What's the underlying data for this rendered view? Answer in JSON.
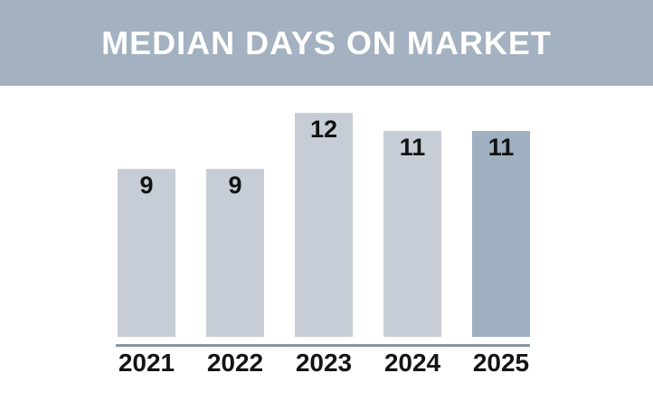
{
  "title": "MEDIAN DAYS ON MARKET",
  "chart_data": {
    "type": "bar",
    "title": "MEDIAN DAYS ON MARKET",
    "categories": [
      "2021",
      "2022",
      "2023",
      "2024",
      "2025"
    ],
    "values": [
      9,
      9,
      12,
      11,
      11
    ],
    "xlabel": "",
    "ylabel": "",
    "ylim": [
      0,
      12
    ],
    "grid": false,
    "legend_position": "none",
    "data_labels_shown": true,
    "bar_colors": [
      "#c7cdd7",
      "#c7cdd7",
      "#c7cdd7",
      "#c7cdd7",
      "#9fb0c0"
    ]
  },
  "colors": {
    "banner_background": "#a3b1c0",
    "banner_text": "#ffffff",
    "bar_default": "#c7cdd7",
    "bar_highlight": "#9fb0c0",
    "axis_line": "#8795a3",
    "label_text": "#141414",
    "page_background": "#ffffff"
  }
}
